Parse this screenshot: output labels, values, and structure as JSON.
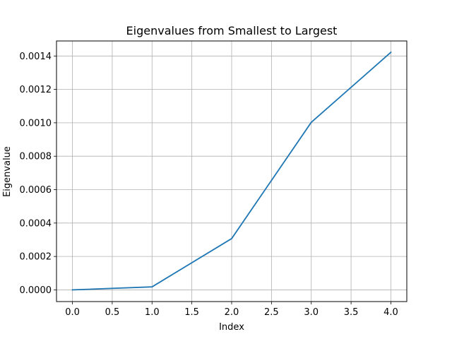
{
  "chart_data": {
    "type": "line",
    "title": "Eigenvalues from Smallest to Largest",
    "xlabel": "Index",
    "ylabel": "Eigenvalue",
    "xlim": [
      -0.2,
      4.2
    ],
    "ylim": [
      -7e-05,
      0.00149
    ],
    "xticks": [
      0.0,
      0.5,
      1.0,
      1.5,
      2.0,
      2.5,
      3.0,
      3.5,
      4.0
    ],
    "xtick_labels": [
      "0.0",
      "0.5",
      "1.0",
      "1.5",
      "2.0",
      "2.5",
      "3.0",
      "3.5",
      "4.0"
    ],
    "yticks": [
      0.0,
      0.0002,
      0.0004,
      0.0006,
      0.0008,
      0.001,
      0.0012,
      0.0014
    ],
    "ytick_labels": [
      "0.0000",
      "0.0002",
      "0.0004",
      "0.0006",
      "0.0008",
      "0.0010",
      "0.0012",
      "0.0014"
    ],
    "grid": true,
    "series": [
      {
        "color": "#1f77b4",
        "x": [
          0,
          1,
          2,
          3,
          4
        ],
        "y": [
          0.0,
          1.8e-05,
          0.000307,
          0.001003,
          0.001422
        ]
      }
    ]
  }
}
